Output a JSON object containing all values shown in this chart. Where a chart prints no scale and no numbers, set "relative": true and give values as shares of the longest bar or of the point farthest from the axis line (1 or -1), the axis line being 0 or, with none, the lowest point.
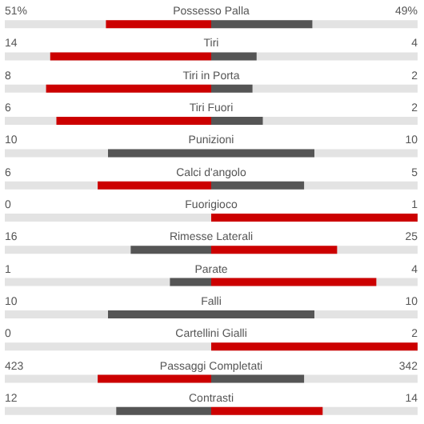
{
  "chart_data": {
    "type": "bar",
    "orientation": "horizontal",
    "relative": true,
    "stacked": true,
    "categories": [
      "Possesso Palla",
      "Tiri",
      "Tiri in Porta",
      "Tiri Fuori",
      "Punizioni",
      "Calci d'angolo",
      "Fuorigioco",
      "Rimesse Laterali",
      "Parate",
      "Falli",
      "Cartellini Gialli",
      "Passaggi Completati",
      "Contrasti"
    ],
    "annotations": [
      "51%",
      "49%",
      "14",
      "4",
      "8",
      "2",
      "6",
      "2",
      "10",
      "10",
      "6",
      "5",
      "0",
      "1",
      "16",
      "25",
      "1",
      "4",
      "10",
      "10",
      "0",
      "2",
      "423",
      "342",
      "12",
      "14"
    ],
    "series": [
      {
        "values": [
          -0.51,
          -0.78,
          -0.8,
          -0.75,
          -0.5,
          -0.55,
          0,
          -0.39,
          -0.2,
          -0.5,
          0,
          -0.55,
          -0.46
        ],
        "colors": [
          "#cc0000",
          "#cc0000",
          "#cc0000",
          "#cc0000",
          "#555555",
          "#cc0000",
          "#555555",
          "#555555",
          "#555555",
          "#555555",
          "#555555",
          "#cc0000",
          "#555555"
        ]
      },
      {
        "values": [
          0.49,
          0.22,
          0.2,
          0.25,
          0.5,
          0.45,
          1,
          0.61,
          0.8,
          0.5,
          1,
          0.45,
          0.54
        ],
        "colors": [
          "#555555",
          "#555555",
          "#555555",
          "#555555",
          "#555555",
          "#555555",
          "#cc0000",
          "#cc0000",
          "#cc0000",
          "#555555",
          "#cc0000",
          "#555555",
          "#cc0000"
        ]
      }
    ]
  }
}
